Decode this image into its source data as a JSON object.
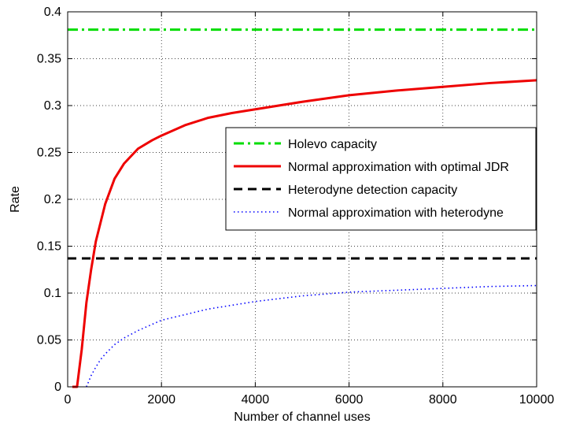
{
  "chart_data": {
    "type": "line",
    "title": "",
    "xlabel": "Number of channel uses",
    "ylabel": "Rate",
    "xlim": [
      0,
      10000
    ],
    "ylim": [
      0,
      0.4
    ],
    "x_ticks": [
      0,
      2000,
      4000,
      6000,
      8000,
      10000
    ],
    "x_tick_labels": [
      "0",
      "2000",
      "4000",
      "6000",
      "8000",
      "10000"
    ],
    "y_ticks": [
      0,
      0.05,
      0.1,
      0.15,
      0.2,
      0.25,
      0.3,
      0.35,
      0.4
    ],
    "y_tick_labels": [
      "0",
      "0.05",
      "0.1",
      "0.15",
      "0.2",
      "0.25",
      "0.3",
      "0.35",
      "0.4"
    ],
    "grid": true,
    "legend_position": "right, mid-upper inside axes",
    "series": [
      {
        "name": "Holevo capacity",
        "color": "#00dd00",
        "style": "dashdot",
        "x": [
          0,
          10000
        ],
        "y": [
          0.381,
          0.381
        ]
      },
      {
        "name": "Normal approximation with optimal JDR",
        "color": "#ee0000",
        "style": "solid",
        "x": [
          100,
          200,
          250,
          300,
          400,
          500,
          600,
          800,
          1000,
          1200,
          1500,
          1800,
          2000,
          2500,
          3000,
          3500,
          4000,
          5000,
          6000,
          7000,
          8000,
          9000,
          10000
        ],
        "y": [
          0,
          0,
          0.02,
          0.04,
          0.09,
          0.125,
          0.155,
          0.195,
          0.222,
          0.238,
          0.254,
          0.263,
          0.268,
          0.279,
          0.287,
          0.292,
          0.296,
          0.304,
          0.311,
          0.316,
          0.32,
          0.324,
          0.327
        ]
      },
      {
        "name": "Heterodyne detection capacity",
        "color": "#000000",
        "style": "dashed",
        "x": [
          0,
          10000
        ],
        "y": [
          0.137,
          0.137
        ]
      },
      {
        "name": "Normal approximation with heterodyne",
        "color": "#0000ff",
        "style": "dotted",
        "x": [
          400,
          500,
          600,
          700,
          800,
          1000,
          1200,
          1500,
          2000,
          2500,
          3000,
          4000,
          5000,
          6000,
          7000,
          8000,
          9000,
          10000
        ],
        "y": [
          0,
          0.012,
          0.021,
          0.029,
          0.035,
          0.045,
          0.052,
          0.06,
          0.071,
          0.077,
          0.083,
          0.091,
          0.097,
          0.101,
          0.103,
          0.105,
          0.107,
          0.108
        ]
      }
    ]
  }
}
